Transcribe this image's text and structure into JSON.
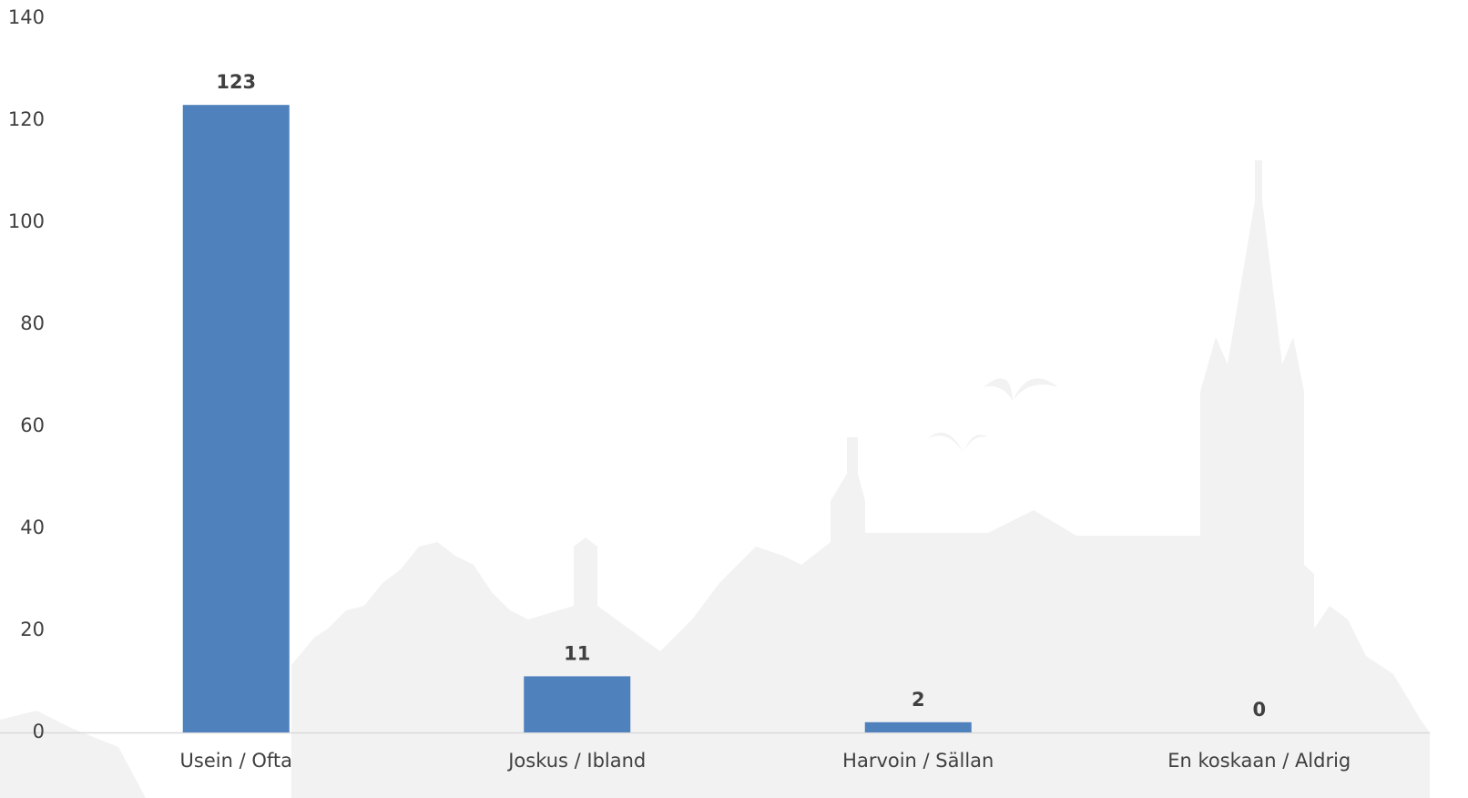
{
  "chart_data": {
    "type": "bar",
    "categories": [
      "Usein / Ofta",
      "Joskus / Ibland",
      "Harvoin / Sällan",
      "En koskaan / Aldrig"
    ],
    "values": [
      123,
      11,
      2,
      0
    ],
    "color": "#4f81bd",
    "ylim": [
      0,
      140
    ],
    "yticks": [
      0,
      20,
      40,
      60,
      80,
      100,
      120,
      140
    ],
    "grid": false,
    "value_labels_shown": true
  }
}
